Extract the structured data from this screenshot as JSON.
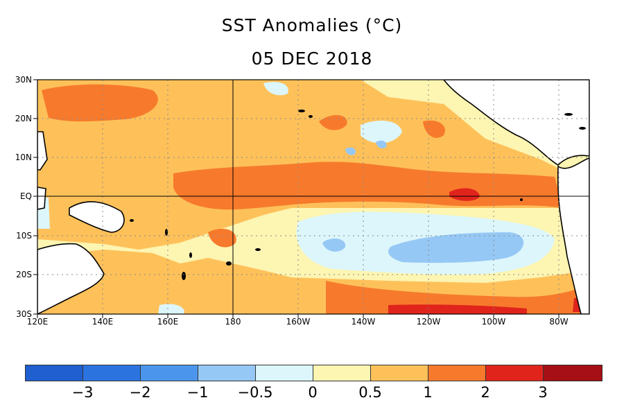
{
  "title": "SST Anomalies (°C)",
  "date": "05 DEC 2018",
  "y_axis_labels": [
    "30N",
    "20N",
    "10N",
    "EQ",
    "10S",
    "20S",
    "30S"
  ],
  "x_axis_labels": [
    "120E",
    "140E",
    "160E",
    "180",
    "160W",
    "140W",
    "120W",
    "100W",
    "80W"
  ],
  "colorbar": {
    "colors": [
      "#1f5fd0",
      "#2b74e0",
      "#4b96ec",
      "#96c8f5",
      "#dcf6fb",
      "#fdf5b2",
      "#fec15a",
      "#f77a2c",
      "#e0241c",
      "#a50f15"
    ],
    "labels": [
      "−3",
      "−2",
      "−1",
      "−0.5",
      "0",
      "0.5",
      "1",
      "2",
      "3"
    ]
  }
}
